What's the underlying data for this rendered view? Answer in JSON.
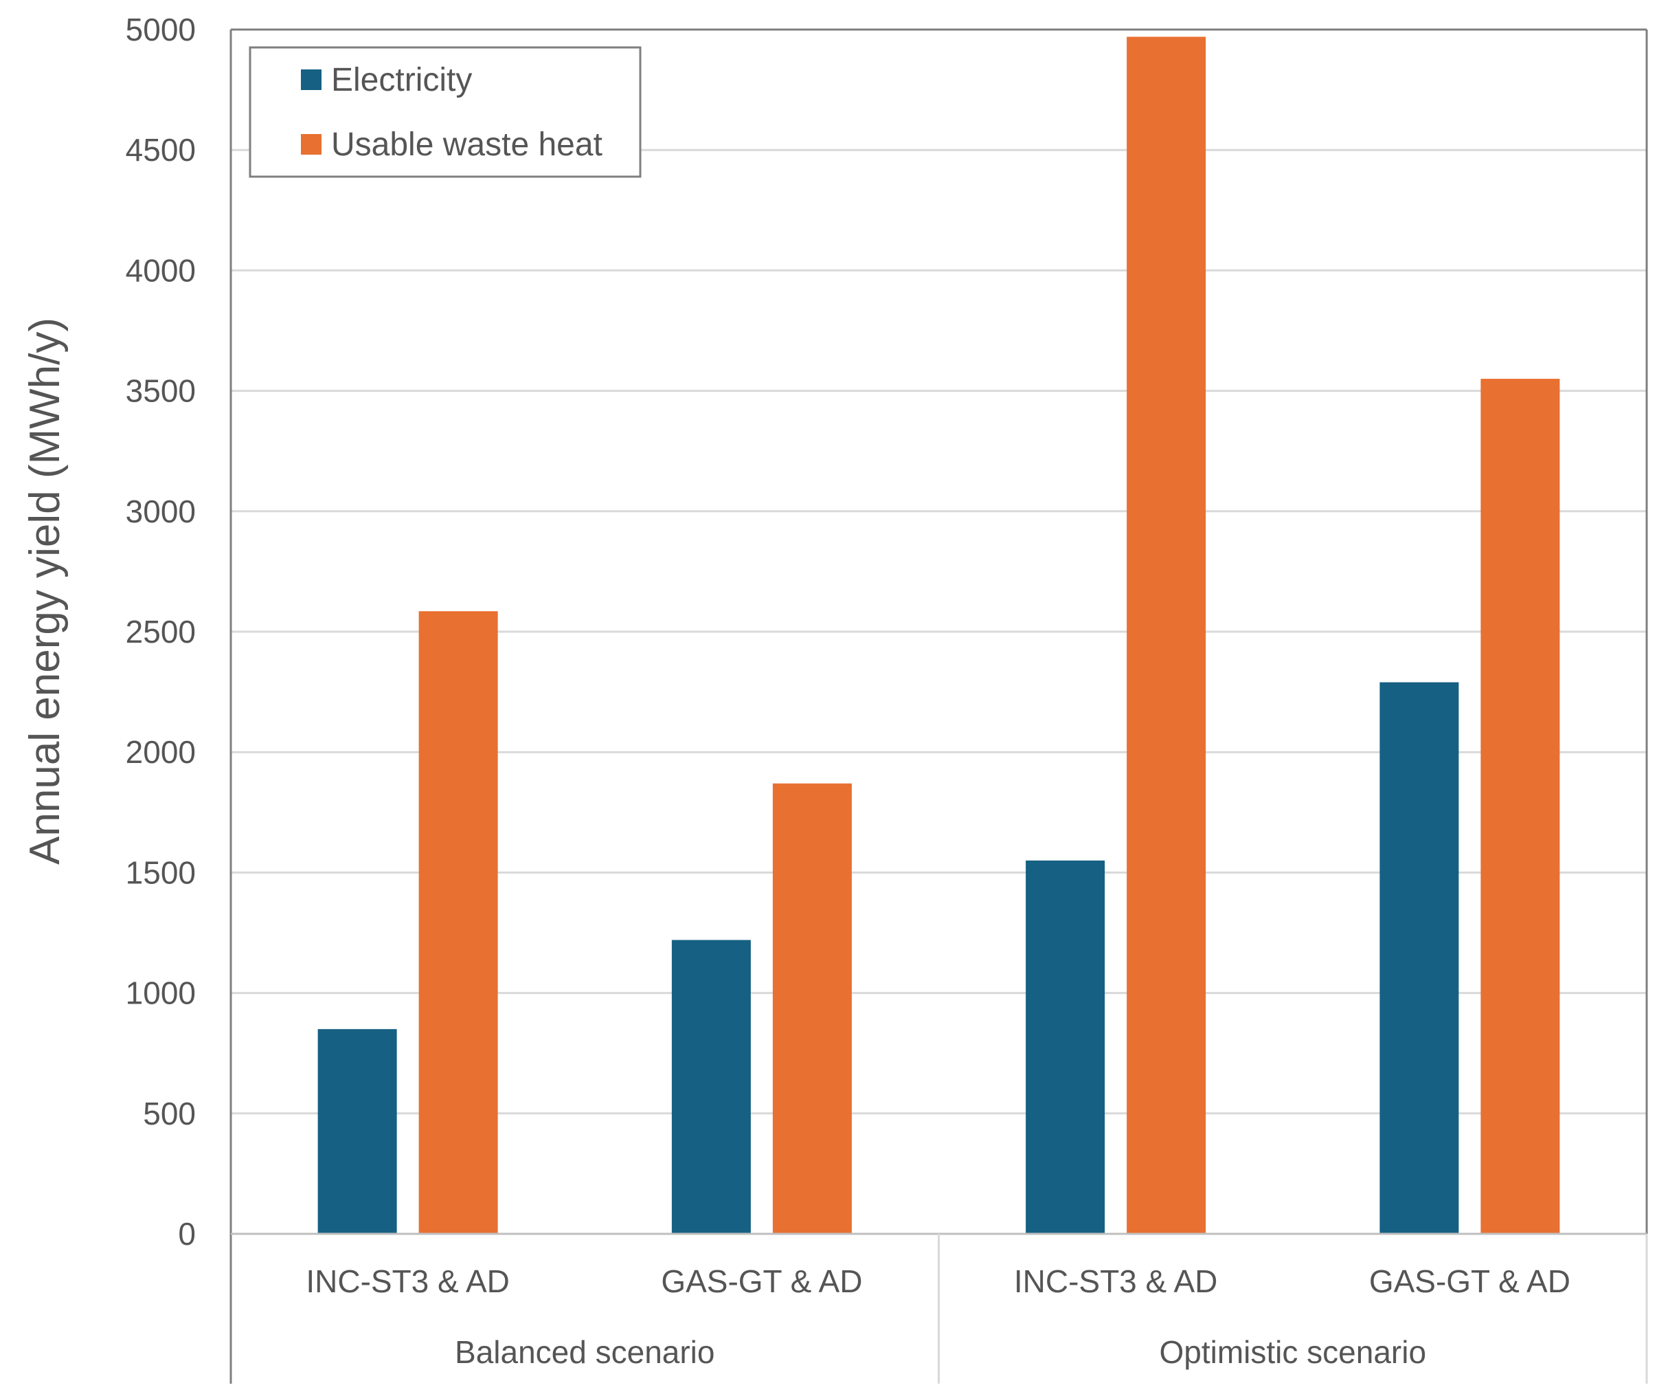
{
  "chart_data": {
    "type": "bar",
    "title": "",
    "xlabel": "",
    "ylabel": "Annual energy yield (MWh/y)",
    "ylim": [
      0,
      5000
    ],
    "yticks": [
      0,
      500,
      1000,
      1500,
      2000,
      2500,
      3000,
      3500,
      4000,
      4500,
      5000
    ],
    "grid": true,
    "legend_position": "top-left",
    "categories": [
      "INC-ST3 & AD",
      "GAS-GT & AD",
      "INC-ST3 & AD",
      "GAS-GT & AD"
    ],
    "groups": [
      {
        "label": "Balanced scenario",
        "categories": [
          0,
          1
        ]
      },
      {
        "label": "Optimistic scenario",
        "categories": [
          2,
          3
        ]
      }
    ],
    "series": [
      {
        "name": "Electricity",
        "color": "#166083",
        "values": [
          850,
          1220,
          1550,
          2290
        ]
      },
      {
        "name": "Usable waste heat",
        "color": "#E87031",
        "values": [
          2585,
          1870,
          4970,
          3550
        ]
      }
    ]
  }
}
